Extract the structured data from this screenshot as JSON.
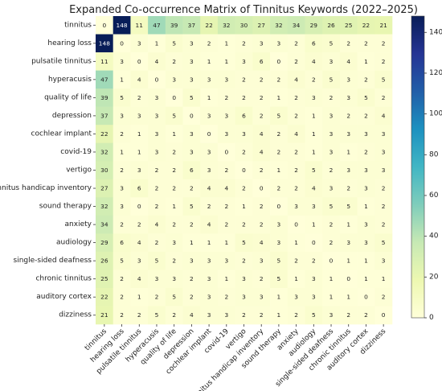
{
  "chart_data": {
    "type": "heatmap",
    "title": "Expanded Co-occurrence Matrix of Tinnitus Keywords (2022–2025)",
    "labels": [
      "tinnitus",
      "hearing loss",
      "pulsatile tinnitus",
      "hyperacusis",
      "quality of life",
      "depression",
      "cochlear implant",
      "covid-19",
      "vertigo",
      "tinnitus handicap inventory",
      "sound therapy",
      "anxiety",
      "audiology",
      "single-sided deafness",
      "chronic tinnitus",
      "auditory cortex",
      "dizziness"
    ],
    "matrix": [
      [
        0,
        148,
        11,
        47,
        39,
        37,
        22,
        32,
        30,
        27,
        32,
        34,
        29,
        26,
        25,
        22,
        21
      ],
      [
        148,
        0,
        3,
        1,
        5,
        3,
        2,
        1,
        2,
        3,
        3,
        2,
        6,
        5,
        2,
        2,
        2
      ],
      [
        11,
        3,
        0,
        4,
        2,
        3,
        1,
        1,
        3,
        6,
        0,
        2,
        4,
        3,
        4,
        1,
        2
      ],
      [
        47,
        1,
        4,
        0,
        3,
        3,
        3,
        3,
        2,
        2,
        2,
        4,
        2,
        5,
        3,
        2,
        5
      ],
      [
        39,
        5,
        2,
        3,
        0,
        5,
        1,
        2,
        2,
        2,
        1,
        2,
        3,
        2,
        3,
        5,
        2
      ],
      [
        37,
        3,
        3,
        3,
        5,
        0,
        3,
        3,
        6,
        2,
        5,
        2,
        1,
        3,
        2,
        2,
        4
      ],
      [
        22,
        2,
        1,
        3,
        1,
        3,
        0,
        3,
        3,
        4,
        2,
        4,
        1,
        3,
        3,
        3,
        3
      ],
      [
        32,
        1,
        1,
        3,
        2,
        3,
        3,
        0,
        2,
        4,
        2,
        2,
        1,
        3,
        1,
        2,
        3
      ],
      [
        30,
        2,
        3,
        2,
        2,
        6,
        3,
        2,
        0,
        2,
        1,
        2,
        5,
        2,
        3,
        3,
        3
      ],
      [
        27,
        3,
        6,
        2,
        2,
        2,
        4,
        4,
        2,
        0,
        2,
        2,
        4,
        3,
        2,
        3,
        2
      ],
      [
        32,
        3,
        0,
        2,
        1,
        5,
        2,
        2,
        1,
        2,
        0,
        3,
        3,
        5,
        5,
        1,
        2
      ],
      [
        34,
        2,
        2,
        4,
        2,
        2,
        4,
        2,
        2,
        2,
        3,
        0,
        1,
        2,
        1,
        3,
        2
      ],
      [
        29,
        6,
        4,
        2,
        3,
        1,
        1,
        1,
        5,
        4,
        3,
        1,
        0,
        2,
        3,
        3,
        5
      ],
      [
        26,
        5,
        3,
        5,
        2,
        3,
        3,
        3,
        2,
        3,
        5,
        2,
        2,
        0,
        1,
        1,
        3
      ],
      [
        25,
        2,
        4,
        3,
        3,
        2,
        3,
        1,
        3,
        2,
        5,
        1,
        3,
        1,
        0,
        1,
        1
      ],
      [
        22,
        2,
        1,
        2,
        5,
        2,
        3,
        2,
        3,
        3,
        1,
        3,
        3,
        1,
        1,
        0,
        2
      ],
      [
        21,
        2,
        2,
        5,
        2,
        4,
        3,
        3,
        2,
        2,
        1,
        2,
        5,
        3,
        2,
        2,
        0
      ]
    ],
    "colorbar": {
      "min": 0,
      "max": 148,
      "ticks": [
        0,
        20,
        40,
        60,
        80,
        100,
        120,
        140
      ]
    },
    "colormap": [
      "#ffffd9",
      "#edf8b1",
      "#c7e9b4",
      "#7fcdbb",
      "#41b6c4",
      "#1d91c0",
      "#225ea8",
      "#253494",
      "#081d58"
    ]
  }
}
